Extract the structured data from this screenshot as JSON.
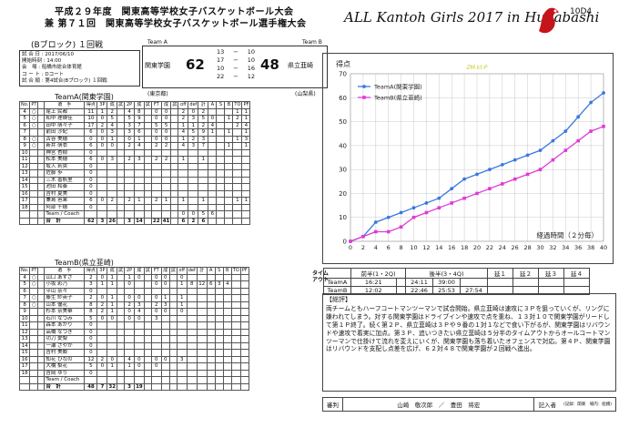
{
  "header": {
    "title1": "平成２９年度　関東高等学校女子バスケットボール大会",
    "title2": "兼 第７１回　関東高等学校女子バスケットボール選手権大会",
    "event": "ALL Kantoh Girls 2017 in Hunabashi",
    "code": "10D4",
    "block": "(Bブロック) １回戦",
    "logo_color": "#c4141c"
  },
  "info": {
    "lines": [
      "試 合 日 : 2017/06/10",
      "開始時刻 : 14:00",
      "会　場 : 船橋市総合体育館",
      "コ ー ト : Dコート",
      "試 合 順 : 第4試合(Bブロック) １回戦"
    ]
  },
  "score": {
    "teamA_label": "Team A",
    "teamB_label": "Team B",
    "teamA": "関東学園",
    "teamB": "県立韮崎",
    "totalA": "62",
    "totalB": "48",
    "quarters": [
      [
        "13",
        "10"
      ],
      [
        "17",
        "10"
      ],
      [
        "10",
        "16"
      ],
      [
        "22",
        "12"
      ]
    ],
    "dash": "−",
    "prefA": "(東京都)",
    "prefB": "(山梨県)"
  },
  "teamA": {
    "title": "TeamA(関東学園)",
    "headers": [
      "No.",
      "PT",
      "",
      "選　手",
      "得点",
      "3P",
      "成",
      "試",
      "2P",
      "成",
      "試",
      "FT",
      "成",
      "試",
      "off",
      "def",
      "計",
      "A",
      "S",
      "B",
      "TO",
      "PF"
    ],
    "rows": [
      [
        "4",
        "○",
        "",
        "尾上 民都",
        "11",
        "1",
        "2",
        "",
        "4",
        "8",
        "",
        "0",
        "0",
        "",
        "2",
        "0",
        "2",
        "",
        "",
        "",
        "1",
        "1"
      ],
      [
        "5",
        "○",
        "",
        "和中 理映佳",
        "10",
        "0",
        "5",
        "",
        "5",
        "9",
        "",
        "0",
        "0",
        "",
        "2",
        "3",
        "5",
        "0",
        "",
        "1",
        "2",
        "1"
      ],
      [
        "6",
        "○",
        "",
        "田中 萌々子",
        "17",
        "2",
        "4",
        "",
        "3",
        "7",
        "",
        "5",
        "5",
        "",
        "1",
        "1",
        "2",
        "4",
        "",
        "",
        "2",
        "4"
      ],
      [
        "7",
        "",
        "",
        "前田 沙紀",
        "6",
        "0",
        "3",
        "",
        "3",
        "6",
        "",
        "0",
        "0",
        "",
        "4",
        "5",
        "9",
        "1",
        "",
        "1",
        "",
        "1"
      ],
      [
        "8",
        "○",
        "",
        "古谷 美穂",
        "0",
        "0",
        "1",
        "",
        "0",
        "1",
        "",
        "0",
        "0",
        "",
        "1",
        "2",
        "3",
        "",
        "",
        "",
        "1",
        "3"
      ],
      [
        "9",
        "○",
        "",
        "新井 萌衣",
        "6",
        "0",
        "0",
        "",
        "2",
        "4",
        "",
        "2",
        "2",
        "",
        "4",
        "3",
        "7",
        "",
        "",
        "1",
        "",
        "1"
      ],
      [
        "10",
        "",
        "",
        "神宮 杏樹",
        "0",
        "",
        "",
        "",
        "",
        "",
        "",
        "",
        "",
        "",
        "",
        "",
        "",
        "",
        "",
        "",
        "",
        ""
      ],
      [
        "11",
        "",
        "",
        "松本 美穂",
        "6",
        "0",
        "3",
        "",
        "2",
        "3",
        "",
        "2",
        "2",
        "",
        "1",
        "",
        "1",
        "",
        "",
        "",
        "",
        ""
      ],
      [
        "12",
        "",
        "",
        "坂入 莉央",
        "0",
        "",
        "",
        "",
        "",
        "",
        "",
        "",
        "",
        "",
        "",
        "",
        "",
        "",
        "",
        "",
        "",
        ""
      ],
      [
        "13",
        "",
        "",
        "佐藤 歩",
        "0",
        "",
        "",
        "",
        "",
        "",
        "",
        "",
        "",
        "",
        "",
        "",
        "",
        "",
        "",
        "",
        "",
        ""
      ],
      [
        "14",
        "",
        "",
        "三木 香帆里",
        "0",
        "",
        "",
        "",
        "",
        "",
        "",
        "",
        "",
        "",
        "",
        "",
        "",
        "",
        "",
        "",
        "",
        ""
      ],
      [
        "15",
        "",
        "",
        "池田 和奏",
        "0",
        "",
        "",
        "",
        "",
        "",
        "",
        "",
        "",
        "",
        "",
        "",
        "",
        "",
        "",
        "",
        "",
        ""
      ],
      [
        "16",
        "",
        "",
        "吉村 夏美",
        "0",
        "",
        "",
        "",
        "",
        "",
        "",
        "",
        "",
        "",
        "",
        "",
        "",
        "",
        "",
        "",
        "",
        ""
      ],
      [
        "17",
        "",
        "",
        "兼島 邑果",
        "6",
        "0",
        "2",
        "",
        "2",
        "1",
        "",
        "2",
        "1",
        "",
        "1",
        "",
        "1",
        "",
        "",
        "",
        "1",
        "1"
      ],
      [
        "18",
        "",
        "",
        "阿部 千穂",
        "0",
        "",
        "",
        "",
        "",
        "",
        "",
        "",
        "",
        "",
        "",
        "",
        "",
        "",
        "",
        "",
        "",
        ""
      ],
      [
        "",
        "",
        "",
        "Team / Coach",
        "",
        "",
        "",
        "",
        "",
        "",
        "",
        "",
        "",
        "",
        "0",
        "0",
        "5",
        "6",
        "",
        "",
        "",
        ""
      ],
      [
        "",
        "",
        "",
        "合　計",
        "62",
        "3",
        "26",
        "",
        "3",
        "14",
        "",
        "22",
        "41",
        "",
        "6",
        "2",
        "6",
        "",
        "",
        "",
        "",
        ""
      ]
    ]
  },
  "teamB": {
    "title": "TeamB(県立韮崎)",
    "headers": [
      "No.",
      "PT",
      "",
      "選　手",
      "得点",
      "3P",
      "成",
      "試",
      "2P",
      "成",
      "試",
      "FT",
      "成",
      "試",
      "off",
      "def",
      "計",
      "A",
      "S",
      "B",
      "TO",
      "PF"
    ],
    "rows": [
      [
        "4",
        "○",
        "",
        "山口 あずさ",
        "2",
        "0",
        "1",
        "",
        "1",
        "0",
        "",
        "0",
        "0",
        "",
        "0",
        "",
        "",
        "",
        "",
        "",
        "",
        ""
      ],
      [
        "5",
        "○",
        "",
        "小坂 彩乃",
        "3",
        "1",
        "1",
        "",
        "0",
        "",
        "",
        "0",
        "0",
        "",
        "1",
        "8",
        "12",
        "6",
        "3",
        "4",
        "",
        ""
      ],
      [
        "6",
        "",
        "",
        "平山 奈々",
        "0",
        "",
        "",
        "",
        "",
        "",
        "",
        "",
        "",
        "",
        "",
        "",
        "",
        "",
        "",
        "",
        "",
        ""
      ],
      [
        "7",
        "○",
        "",
        "藤生 紗英子",
        "2",
        "0",
        "1",
        "",
        "0",
        "0",
        "",
        "0",
        "1",
        "",
        "1",
        "",
        "",
        "",
        "",
        "",
        "",
        ""
      ],
      [
        "8",
        "○",
        "",
        "山本 優花",
        "8",
        "2",
        "1",
        "",
        "2",
        "3",
        "",
        "2",
        "3",
        "",
        "1",
        "",
        "",
        "",
        "",
        "",
        "",
        ""
      ],
      [
        "9",
        "",
        "",
        "杉本 奈美華",
        "8",
        "2",
        "1",
        "",
        "0",
        "4",
        "",
        "0",
        "0",
        "",
        "0",
        "",
        "",
        "",
        "",
        "",
        "",
        ""
      ],
      [
        "10",
        "",
        "",
        "石川 なつみ",
        "5",
        "0",
        "0",
        "",
        "0",
        "0",
        "",
        "3",
        "",
        "",
        "",
        "",
        "",
        "",
        "",
        "",
        "",
        ""
      ],
      [
        "11",
        "",
        "",
        "森本 あかり",
        "0",
        "",
        "",
        "",
        "",
        "",
        "",
        "",
        "",
        "",
        "",
        "",
        "",
        "",
        "",
        "",
        "",
        ""
      ],
      [
        "12",
        "",
        "",
        "高橋 なつき",
        "0",
        "",
        "",
        "",
        "",
        "",
        "",
        "",
        "",
        "",
        "",
        "",
        "",
        "",
        "",
        "",
        "",
        ""
      ],
      [
        "13",
        "",
        "",
        "功刀 愛梨",
        "0",
        "",
        "",
        "",
        "",
        "",
        "",
        "",
        "",
        "",
        "",
        "",
        "",
        "",
        "",
        "",
        "",
        ""
      ],
      [
        "14",
        "",
        "",
        "一瀬 さやか",
        "0",
        "",
        "",
        "",
        "",
        "",
        "",
        "",
        "",
        "",
        "",
        "",
        "",
        "",
        "",
        "",
        "",
        ""
      ],
      [
        "15",
        "",
        "",
        "吉村 美郷",
        "0",
        "",
        "",
        "",
        "",
        "",
        "",
        "",
        "",
        "",
        "",
        "",
        "",
        "",
        "",
        "",
        "",
        ""
      ],
      [
        "16",
        "",
        "",
        "知花 ひなの",
        "12",
        "2",
        "0",
        "",
        "4",
        "0",
        "",
        "0",
        "0",
        "",
        "3",
        "",
        "",
        "",
        "",
        "",
        "",
        ""
      ],
      [
        "17",
        "",
        "",
        "大橋 梨花",
        "5",
        "0",
        "1",
        "",
        "1",
        "0",
        "",
        "0",
        "",
        "",
        "",
        "",
        "",
        "",
        "",
        "",
        "",
        ""
      ],
      [
        "18",
        "",
        "",
        "吉岡 ゆり",
        "0",
        "",
        "",
        "",
        "",
        "",
        "",
        "",
        "",
        "",
        "",
        "",
        "",
        "",
        "",
        "",
        "",
        ""
      ],
      [
        "",
        "",
        "",
        "Team / Coach",
        "",
        "",
        "",
        "",
        "",
        "",
        "",
        "",
        "",
        "",
        "",
        "",
        "",
        "",
        "",
        "",
        "",
        ""
      ],
      [
        "",
        "",
        "",
        "合　計",
        "48",
        "7",
        "32",
        "",
        "3",
        "19",
        "",
        "",
        "",
        "",
        "",
        "",
        "",
        "",
        "",
        "",
        "",
        ""
      ]
    ]
  },
  "chart_data": {
    "type": "line",
    "ylabel": "得点",
    "xlabel": "経過時間（２分毎）",
    "watermark": "ZM.kt-P",
    "x": [
      0,
      1,
      2,
      3,
      4,
      5,
      6,
      7,
      8,
      9,
      10,
      11,
      12,
      13,
      14,
      15,
      16,
      17,
      18,
      19,
      20
    ],
    "xticks": [
      "0",
      "2",
      "4",
      "6",
      "8",
      "10",
      "12",
      "14",
      "16",
      "18",
      "20",
      "22",
      "24",
      "26",
      "28",
      "30",
      "32",
      "34",
      "36",
      "38",
      "40"
    ],
    "yticks": [
      "0",
      "10",
      "20",
      "30",
      "40",
      "50",
      "60",
      "70"
    ],
    "ylim": [
      0,
      70
    ],
    "series": [
      {
        "name": "TeamA(関東学園)",
        "color": "#3a78e0",
        "values": [
          0,
          2,
          8,
          10,
          12,
          14,
          16,
          18,
          22,
          26,
          28,
          30,
          32,
          34,
          36,
          38,
          42,
          46,
          52,
          58,
          62
        ]
      },
      {
        "name": "TeamB(県立韮崎)",
        "color": "#e03ad6",
        "values": [
          0,
          2,
          4,
          4,
          6,
          10,
          12,
          14,
          16,
          18,
          20,
          22,
          24,
          26,
          28,
          30,
          34,
          38,
          42,
          46,
          48
        ]
      }
    ],
    "legend": "top-left"
  },
  "quarter_table": {
    "label": [
      "タイム",
      "アウト"
    ],
    "head": [
      "前半(1・2Q)",
      "後半(3・4Q)",
      "延１",
      "延２",
      "延３",
      "延４"
    ],
    "rowA": [
      "TeamA",
      "16:21",
      "",
      "24:11",
      "39:00",
      "",
      "",
      "",
      ""
    ],
    "rowB": [
      "TeamB",
      "12:02",
      "",
      "22:46",
      "25:53",
      "27:54",
      "",
      "",
      ""
    ]
  },
  "review": {
    "title": "【総評】",
    "text": "両チームともハーフコートマンツーマンで試合開始。県立韮崎は速攻に３Ｐを狙っていくが、リングに嫌われてしまう。対する関東学園はドライブインや速攻で点を重ね、１３対１０で関東学園がリードして第１Ｐ終了。続く第２Ｐ、県立韮崎は３Ｐや９番の１対１などで食い下がるが、関東学園はリバウンドや速攻で着実に加点。第３Ｐ、追いつきたい県立韮崎は５分半のタイムアウトからオールコートマンツーマンで仕掛けて流れを変えにいくが、関東学園も落ち着いたオフェンスで対応。第４Ｐ、関東学園はリバウンドを支配し点差を広げ、６２対４８で関東学園が２回戦へ進出。"
  },
  "footer": {
    "ref_label": "審判",
    "refs": "山崎　敬次郎　／　豊田　将宏",
    "rec_label": "記入者",
    "rec_note": "(記録：関東　場内：船橋)"
  }
}
